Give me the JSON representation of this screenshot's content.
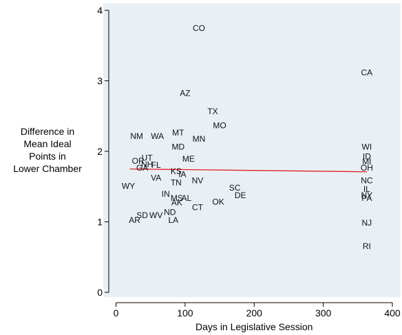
{
  "chart_data": {
    "type": "scatter",
    "title": "",
    "xlabel": "Days in Legislative Session",
    "ylabel_lines": [
      "Difference in",
      "Mean Ideal",
      "Points in",
      "Lower Chamber"
    ],
    "xlim": [
      -5,
      405
    ],
    "ylim": [
      -0.05,
      4.1
    ],
    "xticks": [
      0,
      100,
      200,
      300,
      400
    ],
    "yticks": [
      0,
      1,
      2,
      3,
      4
    ],
    "grid": false,
    "background_color": "#e8f0f6",
    "fit_line_color": "#e02020",
    "fit_line": {
      "x": [
        20,
        363
      ],
      "y": [
        1.75,
        1.71
      ]
    },
    "points": [
      {
        "label": "CO",
        "x": 120,
        "y": 3.75
      },
      {
        "label": "CA",
        "x": 363,
        "y": 3.12
      },
      {
        "label": "AZ",
        "x": 100,
        "y": 2.83
      },
      {
        "label": "TX",
        "x": 140,
        "y": 2.57
      },
      {
        "label": "MO",
        "x": 150,
        "y": 2.37
      },
      {
        "label": "MT",
        "x": 90,
        "y": 2.27
      },
      {
        "label": "NM",
        "x": 30,
        "y": 2.22
      },
      {
        "label": "WA",
        "x": 60,
        "y": 2.22
      },
      {
        "label": "MN",
        "x": 120,
        "y": 2.18
      },
      {
        "label": "MD",
        "x": 90,
        "y": 2.07
      },
      {
        "label": "WI",
        "x": 363,
        "y": 2.07
      },
      {
        "label": "ID",
        "x": 363,
        "y": 1.93
      },
      {
        "label": "UT",
        "x": 45,
        "y": 1.91
      },
      {
        "label": "ME",
        "x": 105,
        "y": 1.9
      },
      {
        "label": "MI",
        "x": 363,
        "y": 1.86
      },
      {
        "label": "OR",
        "x": 32,
        "y": 1.87
      },
      {
        "label": "NH",
        "x": 45,
        "y": 1.82
      },
      {
        "label": "FL",
        "x": 58,
        "y": 1.81
      },
      {
        "label": "GA",
        "x": 38,
        "y": 1.77
      },
      {
        "label": "OH",
        "x": 363,
        "y": 1.77
      },
      {
        "label": "KS",
        "x": 87,
        "y": 1.72
      },
      {
        "label": "IA",
        "x": 96,
        "y": 1.68
      },
      {
        "label": "VA",
        "x": 58,
        "y": 1.63
      },
      {
        "label": "NV",
        "x": 118,
        "y": 1.59
      },
      {
        "label": "NC",
        "x": 363,
        "y": 1.59
      },
      {
        "label": "TN",
        "x": 87,
        "y": 1.56
      },
      {
        "label": "WY",
        "x": 18,
        "y": 1.51
      },
      {
        "label": "SC",
        "x": 172,
        "y": 1.49
      },
      {
        "label": "IL",
        "x": 363,
        "y": 1.47
      },
      {
        "label": "DE",
        "x": 180,
        "y": 1.38
      },
      {
        "label": "NY",
        "x": 363,
        "y": 1.38
      },
      {
        "label": "IN",
        "x": 72,
        "y": 1.4
      },
      {
        "label": "PA",
        "x": 363,
        "y": 1.34
      },
      {
        "label": "MS",
        "x": 88,
        "y": 1.34
      },
      {
        "label": "AL",
        "x": 102,
        "y": 1.34
      },
      {
        "label": "OK",
        "x": 148,
        "y": 1.29
      },
      {
        "label": "AK",
        "x": 88,
        "y": 1.28
      },
      {
        "label": "CT",
        "x": 118,
        "y": 1.21
      },
      {
        "label": "ND",
        "x": 78,
        "y": 1.14
      },
      {
        "label": "SD",
        "x": 38,
        "y": 1.1
      },
      {
        "label": "WV",
        "x": 58,
        "y": 1.1
      },
      {
        "label": "LA",
        "x": 83,
        "y": 1.03
      },
      {
        "label": "AR",
        "x": 27,
        "y": 1.03
      },
      {
        "label": "NJ",
        "x": 363,
        "y": 0.99
      },
      {
        "label": "RI",
        "x": 363,
        "y": 0.66
      }
    ]
  }
}
